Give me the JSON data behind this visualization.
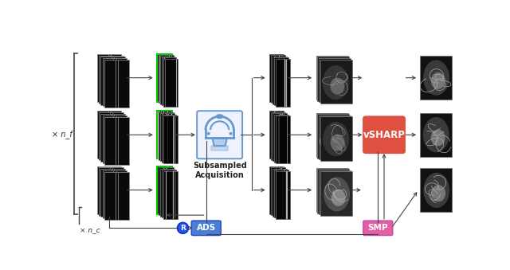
{
  "bg_color": "#ffffff",
  "nf_label": "× n_f",
  "nc_label": "× n_c",
  "ads_label": "ADS",
  "smp_label": "SMP",
  "vsharp_label": "vSHARP",
  "subsampled_label": "Subsampled\nAcquisition",
  "ads_color": "#4a7fd4",
  "smp_color": "#e060a0",
  "vsharp_color": "#e05040",
  "r_color": "#2255ee",
  "arrow_color": "#444444",
  "kspace_green": "#00cc00",
  "scanner_color": "#6699cc",
  "scanner_bg": "#eef2ff"
}
